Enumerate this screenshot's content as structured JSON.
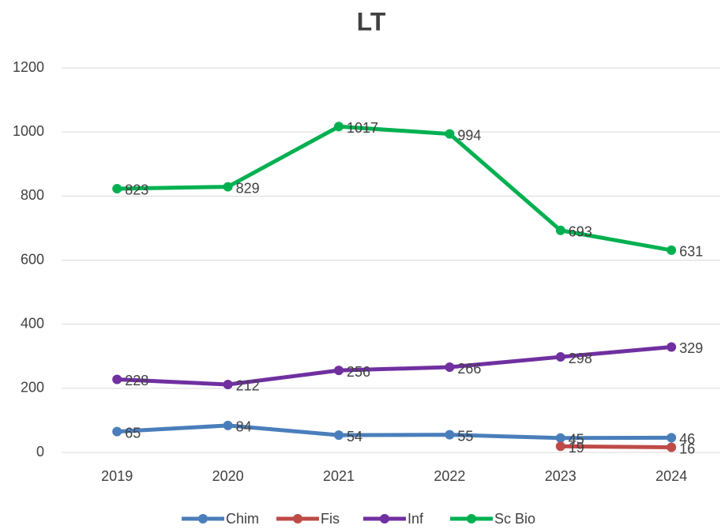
{
  "chart_data": {
    "type": "line",
    "title": "LT",
    "categories": [
      "2019",
      "2020",
      "2021",
      "2022",
      "2023",
      "2024"
    ],
    "series": [
      {
        "name": "Chim",
        "color": "#4a7ebb",
        "values": [
          65,
          84,
          54,
          55,
          45,
          46
        ]
      },
      {
        "name": "Fis",
        "color": "#be4b48",
        "values": [
          null,
          null,
          null,
          null,
          19,
          16
        ]
      },
      {
        "name": "Inf",
        "color": "#7030a0",
        "values": [
          228,
          212,
          256,
          266,
          298,
          329
        ]
      },
      {
        "name": "Sc Bio",
        "color": "#00b050",
        "values": [
          823,
          829,
          1017,
          994,
          693,
          631
        ]
      }
    ],
    "ylim": [
      0,
      1200
    ],
    "yticks": [
      0,
      200,
      400,
      600,
      800,
      1000,
      1200
    ],
    "grid": true,
    "legend": "bottom"
  }
}
